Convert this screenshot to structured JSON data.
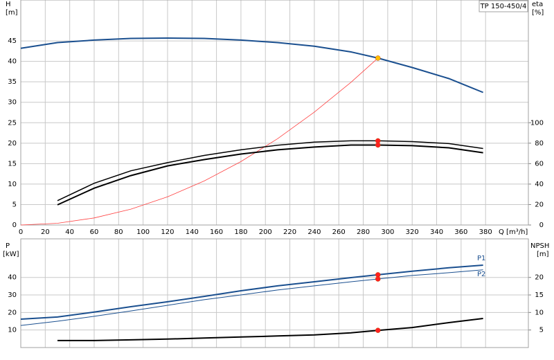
{
  "chart_data": [
    {
      "type": "line",
      "title": "TP 150-450/4",
      "x_label": "Q [m³/h]",
      "y_label": "H",
      "y_unit": "[m]",
      "y2_label": "eta",
      "y2_unit": "[%]",
      "xlim": [
        0,
        415
      ],
      "xticks": [
        0,
        20,
        40,
        60,
        80,
        100,
        120,
        140,
        160,
        180,
        200,
        220,
        240,
        260,
        280,
        300,
        320,
        340,
        360,
        380
      ],
      "ylim": [
        0,
        55
      ],
      "yticks": [
        0,
        5,
        10,
        15,
        20,
        25,
        30,
        35,
        40,
        45
      ],
      "y2lim": [
        0,
        220
      ],
      "y2ticks": [
        0,
        20,
        40,
        60,
        80,
        100
      ],
      "grid": true,
      "series": [
        {
          "color": "#1a4f8f",
          "line_width": 2,
          "axis": "y",
          "x": [
            0,
            30,
            60,
            90,
            120,
            150,
            180,
            210,
            240,
            270,
            292,
            320,
            350,
            378
          ],
          "values": [
            43.2,
            44.6,
            45.2,
            45.6,
            45.7,
            45.6,
            45.2,
            44.6,
            43.7,
            42.3,
            40.8,
            38.5,
            35.8,
            32.4
          ]
        },
        {
          "color": "#ff4040",
          "line_width": 0.8,
          "axis": "y",
          "x": [
            0,
            30,
            60,
            90,
            120,
            150,
            180,
            210,
            240,
            270,
            292
          ],
          "values": [
            0,
            0.43,
            1.72,
            3.88,
            6.89,
            10.77,
            15.5,
            21.1,
            27.6,
            34.9,
            40.8
          ]
        },
        {
          "color": "#000000",
          "line_width": 1.5,
          "axis": "y2",
          "x": [
            30,
            60,
            90,
            120,
            150,
            180,
            210,
            240,
            270,
            292,
            320,
            350,
            378
          ],
          "values": [
            23.8,
            40.8,
            53,
            61,
            68,
            73.5,
            78,
            81,
            82.3,
            82.3,
            81.6,
            79.6,
            74.8
          ]
        },
        {
          "color": "#000000",
          "line_width": 2,
          "axis": "y2",
          "x": [
            30,
            60,
            90,
            120,
            150,
            180,
            210,
            240,
            270,
            292,
            320,
            350,
            378
          ],
          "values": [
            19.7,
            36,
            48.3,
            57.8,
            64,
            69.4,
            73.5,
            76.2,
            78.2,
            78.2,
            77.6,
            75.5,
            70.7
          ]
        },
        {
          "type": "scatter",
          "color": "#ffc000",
          "axis": "y",
          "x": [
            292
          ],
          "values": [
            40.8
          ]
        },
        {
          "type": "scatter",
          "color": "#ff2020",
          "axis": "y2",
          "x": [
            292,
            292
          ],
          "values": [
            82.3,
            78.2
          ]
        }
      ]
    },
    {
      "type": "line",
      "y_label": "P",
      "y_unit": "[kW]",
      "y2_label": "NPSH",
      "y2_unit": "[m]",
      "xlim": [
        0,
        415
      ],
      "xticks": [
        0,
        20,
        40,
        60,
        80,
        100,
        120,
        140,
        160,
        180,
        200,
        220,
        240,
        260,
        280,
        300,
        320,
        340,
        360,
        380
      ],
      "ylim": [
        0,
        62
      ],
      "yticks": [
        10,
        20,
        30,
        40
      ],
      "y2lim": [
        0,
        31
      ],
      "y2ticks": [
        5,
        10,
        15,
        20
      ],
      "grid": true,
      "series": [
        {
          "name": "P1",
          "color": "#1a4f8f",
          "line_width": 2,
          "axis": "y",
          "x": [
            0,
            30,
            60,
            90,
            120,
            150,
            180,
            210,
            240,
            270,
            292,
            320,
            350,
            378
          ],
          "values": [
            16.2,
            17.4,
            20.2,
            23.3,
            26.1,
            29.2,
            32.4,
            35.2,
            37.5,
            39.9,
            41.5,
            43.5,
            45.5,
            47.0
          ]
        },
        {
          "name": "P2",
          "color": "#1a4f8f",
          "line_width": 1,
          "axis": "y",
          "x": [
            0,
            30,
            60,
            90,
            120,
            150,
            180,
            210,
            240,
            270,
            292,
            320,
            350,
            378
          ],
          "values": [
            12.6,
            15,
            17.8,
            20.9,
            24.1,
            27.3,
            30,
            32.8,
            35.2,
            37.5,
            39.1,
            41.1,
            42.7,
            44.3
          ]
        },
        {
          "color": "#000000",
          "line_width": 2,
          "axis": "y2",
          "x": [
            30,
            60,
            90,
            120,
            150,
            180,
            210,
            240,
            270,
            292,
            320,
            350,
            378
          ],
          "values": [
            2.0,
            2.0,
            2.2,
            2.4,
            2.7,
            3.0,
            3.3,
            3.6,
            4.2,
            4.9,
            5.7,
            7.1,
            8.3
          ]
        },
        {
          "type": "scatter",
          "color": "#ff2020",
          "axis": "y",
          "x": [
            292,
            292
          ],
          "values": [
            41.5,
            39.1
          ]
        },
        {
          "type": "scatter",
          "color": "#ff2020",
          "axis": "y2",
          "x": [
            292
          ],
          "values": [
            4.9
          ]
        }
      ]
    }
  ]
}
